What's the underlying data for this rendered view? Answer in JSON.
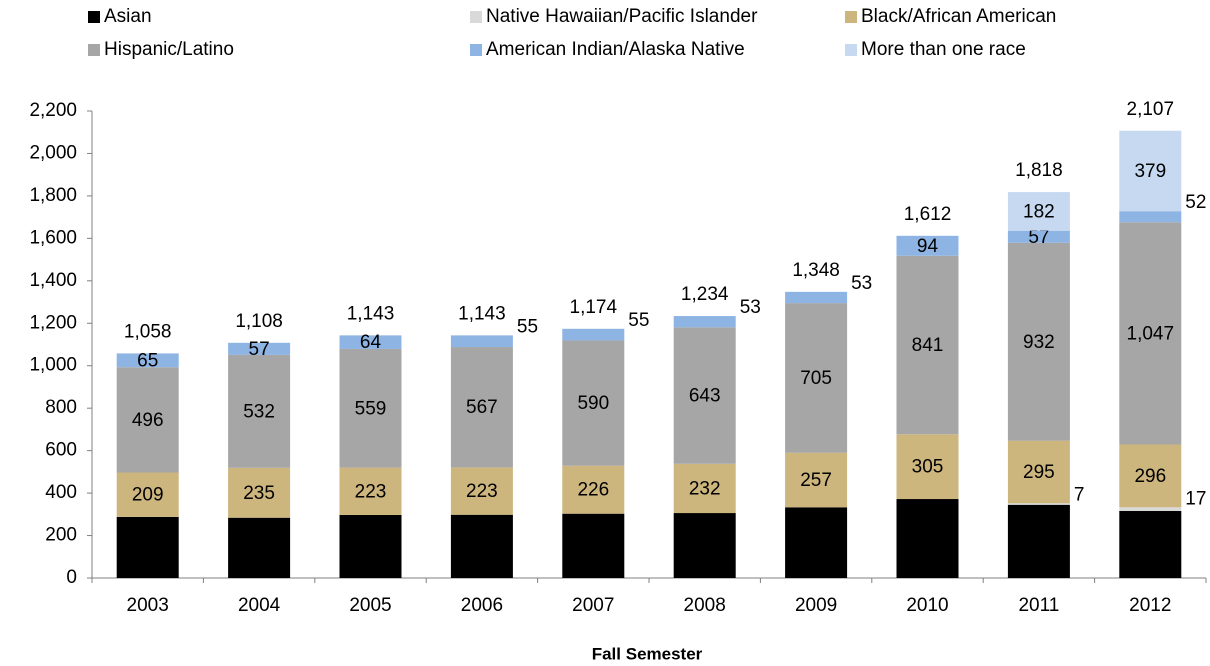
{
  "chart_data": {
    "type": "stacked_bar",
    "x_label": "Fall Semester",
    "categories": [
      "2003",
      "2004",
      "2005",
      "2006",
      "2007",
      "2008",
      "2009",
      "2010",
      "2011",
      "2012"
    ],
    "series": [
      {
        "name": "Asian",
        "color": "#000000",
        "values": [
          288,
          284,
          297,
          298,
          303,
          306,
          333,
          372,
          345,
          316
        ]
      },
      {
        "name": "Native Hawaiian/Pacific Islander",
        "color": "#d9d9d9",
        "values": [
          null,
          null,
          null,
          null,
          null,
          null,
          null,
          null,
          7,
          17
        ]
      },
      {
        "name": "Black/African American",
        "color": "#cdb57e",
        "values": [
          209,
          235,
          223,
          223,
          226,
          232,
          257,
          305,
          295,
          296
        ]
      },
      {
        "name": "Hispanic/Latino",
        "color": "#a6a6a6",
        "values": [
          496,
          532,
          559,
          567,
          590,
          643,
          705,
          841,
          932,
          1047
        ],
        "value_labels": [
          "496",
          "532",
          "559",
          "567",
          "590",
          "643",
          "705",
          "841",
          "932",
          "1,047"
        ]
      },
      {
        "name": "American Indian/Alaska Native",
        "color": "#8eb4e3",
        "values": [
          65,
          57,
          64,
          55,
          55,
          53,
          53,
          94,
          57,
          52
        ]
      },
      {
        "name": "More than one race",
        "color": "#c6d9f1",
        "values": [
          null,
          null,
          null,
          null,
          null,
          null,
          null,
          null,
          182,
          379
        ]
      }
    ],
    "totals": {
      "values": [
        1058,
        1108,
        1143,
        1143,
        1174,
        1234,
        1348,
        1612,
        1818,
        2107
      ],
      "value_labels": [
        "1,058",
        "1,108",
        "1,143",
        "1,143",
        "1,174",
        "1,234",
        "1,348",
        "1,612",
        "1,818",
        "2,107"
      ]
    },
    "ylim": [
      0,
      2200
    ],
    "yticks": [
      0,
      200,
      400,
      600,
      800,
      {
        "value": 1000,
        "label": "1,000"
      },
      {
        "value": 1200,
        "label": "1,200"
      },
      {
        "value": 1400,
        "label": "1,400"
      },
      {
        "value": 1600,
        "label": "1,600"
      },
      {
        "value": 1800,
        "label": "1,800"
      },
      {
        "value": 2000,
        "label": "2,000"
      },
      {
        "value": 2200,
        "label": "2,200"
      }
    ],
    "grid": false,
    "legend": "top"
  }
}
